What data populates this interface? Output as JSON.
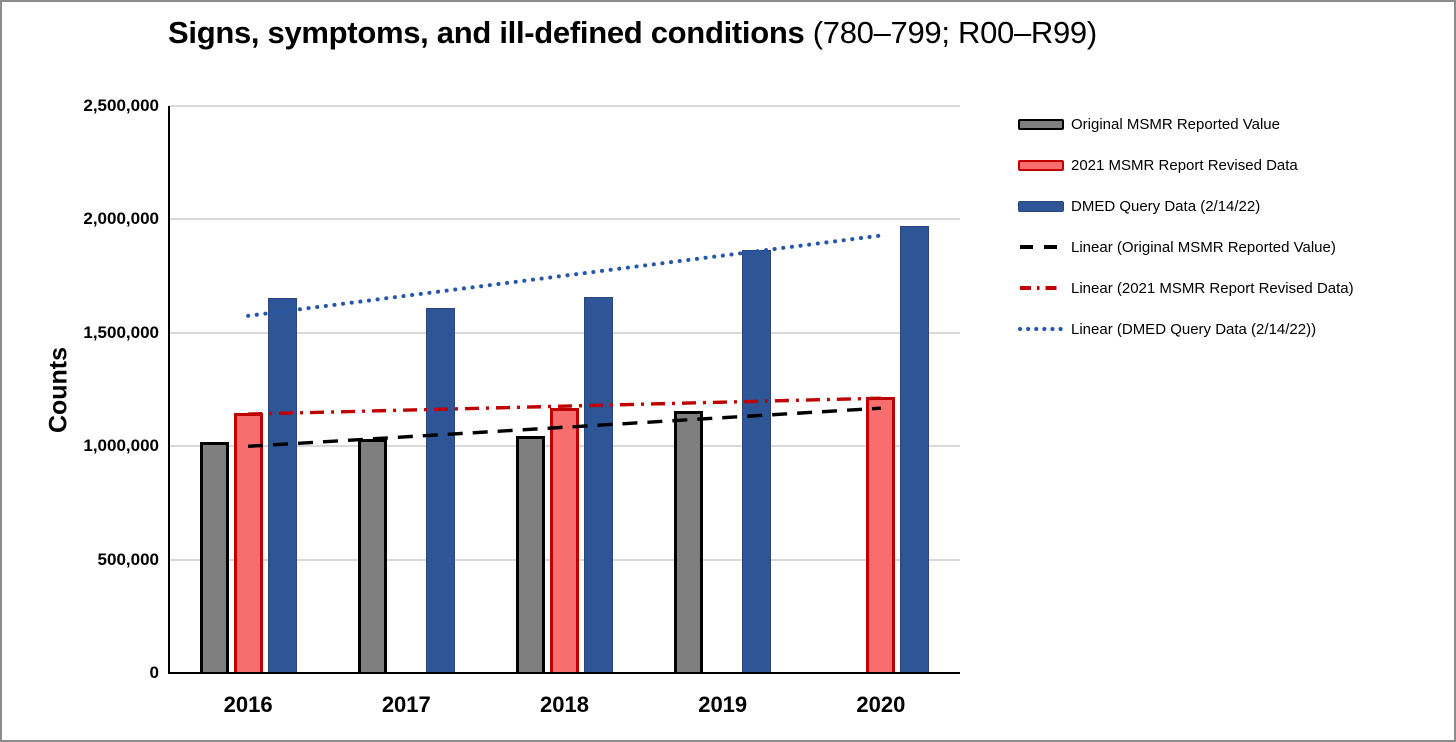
{
  "frame": {
    "background": "#FFFFFF",
    "border_color": "#8C8C8C"
  },
  "title": {
    "main": "Signs, symptoms, and ill-defined conditions",
    "suffix": " (780–799; R00–R99)"
  },
  "chart_data": {
    "type": "bar",
    "title": "Signs, symptoms, and ill-defined conditions (780–799; R00–R99)",
    "ylabel": "Counts",
    "xlabel": "",
    "ylim": [
      0,
      2500000
    ],
    "ytick_interval": 500000,
    "yticks": [
      {
        "value": 0,
        "label": "0"
      },
      {
        "value": 500000,
        "label": "500,000"
      },
      {
        "value": 1000000,
        "label": "1,000,000"
      },
      {
        "value": 1500000,
        "label": "1,500,000"
      },
      {
        "value": 2000000,
        "label": "2,000,000"
      },
      {
        "value": 2500000,
        "label": "2,500,000"
      }
    ],
    "grid": true,
    "gridline_color": "#D9D9D9",
    "axis_color": "#000000",
    "legend_position": "right",
    "categories": [
      "2016",
      "2017",
      "2018",
      "2019",
      "2020"
    ],
    "series": [
      {
        "name": "Original MSMR Reported Value",
        "fill": "#7F7F7F",
        "border": "#000000",
        "values": [
          1020000,
          1030000,
          1045000,
          1155000,
          null
        ]
      },
      {
        "name": "2021 MSMR Report Revised Data",
        "fill": "#F86E6E",
        "border": "#C00000",
        "values": [
          1145000,
          null,
          1170000,
          null,
          1215000
        ]
      },
      {
        "name": "DMED Query Data (2/14/22)",
        "fill": "#2E5596",
        "border": "#27477E",
        "values": [
          1655000,
          1610000,
          1660000,
          1865000,
          1970000
        ]
      }
    ],
    "trendlines": [
      {
        "name": "Linear (Original MSMR Reported Value)",
        "color": "#000000",
        "style": "dash",
        "series": 0
      },
      {
        "name": "Linear (2021 MSMR Report Revised Data)",
        "color": "#C00000",
        "style": "dashdot",
        "series": 1
      },
      {
        "name": "Linear (DMED Query Data (2/14/22))",
        "color": "#2457A7",
        "style": "dot",
        "series": 2
      }
    ]
  }
}
